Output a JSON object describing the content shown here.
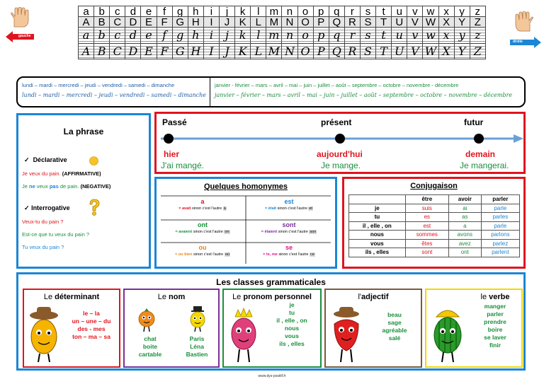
{
  "alphabet": {
    "lower": [
      "a",
      "b",
      "c",
      "d",
      "e",
      "f",
      "g",
      "h",
      "i",
      "j",
      "k",
      "l",
      "m",
      "n",
      "o",
      "p",
      "q",
      "r",
      "s",
      "t",
      "u",
      "v",
      "w",
      "x",
      "y",
      "z"
    ],
    "upper": [
      "A",
      "B",
      "C",
      "D",
      "E",
      "F",
      "G",
      "H",
      "I",
      "J",
      "K",
      "L",
      "M",
      "N",
      "O",
      "P",
      "Q",
      "R",
      "S",
      "T",
      "U",
      "V",
      "W",
      "X",
      "Y",
      "Z"
    ],
    "gauche_label": "gauche",
    "droite_label": "droite"
  },
  "days": {
    "print": "lundi – mardi – mercredi – jeudi – vendredi – samedi – dimanche",
    "cursive": "lundi – mardi – mercredi – jeudi – vendredi – samedi – dimanche"
  },
  "months": {
    "print": "janvier - février – mars – avril – mai – juin – juillet – août – septembre – octobre – novembre - décembre",
    "cursive": "janvier – février – mars – avril – mai – juin – juillet – août – septembre – octobre – novembre – décembre"
  },
  "phrase": {
    "title": "La phrase",
    "declarative_label": "Déclarative",
    "decl_1_text": "Je veux du pain.",
    "decl_1_tag": "(AFFIRMATIVE)",
    "decl_2_je": "Je",
    "decl_2_ne": "ne",
    "decl_2_veux": "veux",
    "decl_2_pas": "pas",
    "decl_2_rest": "de pain.",
    "decl_2_tag": "(NEGATIVE)",
    "interrogative_label": "Interrogative",
    "int_1": "Veux-tu du pain ?",
    "int_2": "Est-ce que tu veux du pain ?",
    "int_3": "Tu veux du pain ?"
  },
  "timeline": {
    "passe": "Passé",
    "present": "présent",
    "futur": "futur",
    "hier": "hier",
    "aujourdhui": "aujourd'hui",
    "demain": "demain",
    "ex_passe": "J'ai mangé.",
    "ex_present": "Je mange.",
    "ex_futur": "Je mangerai."
  },
  "homonymes": {
    "title": "Quelques homonymes",
    "items": [
      {
        "word": "a",
        "color": "#e0141e",
        "expl_bold": "= avait",
        "expl_rest": "sinon c'est l'autre",
        "other": "à"
      },
      {
        "word": "est",
        "color": "#1b86d6",
        "expl_bold": "= était",
        "expl_rest": "sinon c'est l'autre",
        "other": "et"
      },
      {
        "word": "ont",
        "color": "#1a8f3c",
        "expl_bold": "= avaient",
        "expl_rest": "sinon c'est l'autre",
        "other": "on"
      },
      {
        "word": "sont",
        "color": "#7a2f9a",
        "expl_bold": "= étaient",
        "expl_rest": "sinon c'est l'autre",
        "other": "son"
      },
      {
        "word": "ou",
        "color": "#e8841a",
        "expl_bold": "= ou bien",
        "expl_rest": "sinon c'est l'autre",
        "other": "où"
      },
      {
        "word": "se",
        "color": "#e0148c",
        "expl_bold": "= te, me",
        "expl_rest": "sinon c'est l'autre",
        "other": "ce"
      }
    ]
  },
  "conjugaison": {
    "title": "Conjugaison",
    "headers": [
      "",
      "être",
      "avoir",
      "parler"
    ],
    "rows": [
      [
        "je",
        "suis",
        "ai",
        "parle"
      ],
      [
        "tu",
        "es",
        "as",
        "parles"
      ],
      [
        "il , elle , on",
        "est",
        "a",
        "parle"
      ],
      [
        "nous",
        "sommes",
        "avons",
        "parlons"
      ],
      [
        "vous",
        "êtes",
        "avez",
        "parlez"
      ],
      [
        "ils , elles",
        "sont",
        "ont",
        "parlent"
      ]
    ],
    "colors": [
      "#000000",
      "#e0141e",
      "#1a8f3c",
      "#1b86d6"
    ]
  },
  "classes": {
    "title": "Les classes grammaticales",
    "determinant": {
      "le": "Le",
      "name": "déterminant",
      "list": [
        "le – la",
        "un – une – du",
        "des - mes",
        "ton – ma – sa"
      ]
    },
    "nom": {
      "le": "Le",
      "name": "nom",
      "col1": [
        "chat",
        "boite",
        "cartable"
      ],
      "col2": [
        "Paris",
        "Léna",
        "Bastien"
      ]
    },
    "pronom": {
      "le": "Le",
      "name": "pronom personnel",
      "list": [
        "je",
        "tu",
        "il , elle , on",
        "nous",
        "vous",
        "ils , elles"
      ]
    },
    "adjectif": {
      "le": "l'",
      "name": "adjectif",
      "list": [
        "beau",
        "sage",
        "agréable",
        "salé"
      ]
    },
    "verbe": {
      "le": "le",
      "name": "verbe",
      "list": [
        "manger",
        "parler",
        "prendre",
        "boire",
        "se laver",
        "finir"
      ]
    }
  },
  "footer": "www.dys-positif.fr"
}
